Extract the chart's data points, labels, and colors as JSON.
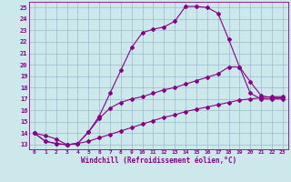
{
  "xlabel": "Windchill (Refroidissement éolien,°C)",
  "bg_color": "#cce8ea",
  "line_color": "#880088",
  "grid_color": "#99bbcc",
  "x_ticks": [
    0,
    1,
    2,
    3,
    4,
    5,
    6,
    7,
    8,
    9,
    10,
    11,
    12,
    13,
    14,
    15,
    16,
    17,
    18,
    19,
    20,
    21,
    22,
    23
  ],
  "y_ticks": [
    13,
    14,
    15,
    16,
    17,
    18,
    19,
    20,
    21,
    22,
    23,
    24,
    25
  ],
  "ylim": [
    12.6,
    25.5
  ],
  "xlim": [
    -0.5,
    23.5
  ],
  "line1_x": [
    0,
    1,
    2,
    3,
    4,
    5,
    6,
    7,
    8,
    9,
    10,
    11,
    12,
    13,
    14,
    15,
    16,
    17,
    18,
    19,
    20,
    21,
    22,
    23
  ],
  "line1_y": [
    14.0,
    13.3,
    13.1,
    13.0,
    13.1,
    14.1,
    15.5,
    17.5,
    19.5,
    21.5,
    22.8,
    23.1,
    23.3,
    23.8,
    25.1,
    25.1,
    25.0,
    24.5,
    22.2,
    19.8,
    18.5,
    17.3,
    17.1,
    17.1
  ],
  "line2_x": [
    0,
    1,
    2,
    3,
    4,
    5,
    6,
    7,
    8,
    9,
    10,
    11,
    12,
    13,
    14,
    15,
    16,
    17,
    18,
    19,
    20,
    21,
    22,
    23
  ],
  "line2_y": [
    14.0,
    13.3,
    13.1,
    13.0,
    13.1,
    14.1,
    15.3,
    16.2,
    16.7,
    17.0,
    17.2,
    17.5,
    17.8,
    18.0,
    18.3,
    18.6,
    18.9,
    19.2,
    19.8,
    19.8,
    17.5,
    17.0,
    17.0,
    17.0
  ],
  "line3_x": [
    0,
    1,
    2,
    3,
    4,
    5,
    6,
    7,
    8,
    9,
    10,
    11,
    12,
    13,
    14,
    15,
    16,
    17,
    18,
    19,
    20,
    21,
    22,
    23
  ],
  "line3_y": [
    14.0,
    13.8,
    13.5,
    13.0,
    13.1,
    13.3,
    13.6,
    13.9,
    14.2,
    14.5,
    14.8,
    15.1,
    15.4,
    15.6,
    15.9,
    16.1,
    16.3,
    16.5,
    16.7,
    16.9,
    17.0,
    17.1,
    17.2,
    17.2
  ]
}
